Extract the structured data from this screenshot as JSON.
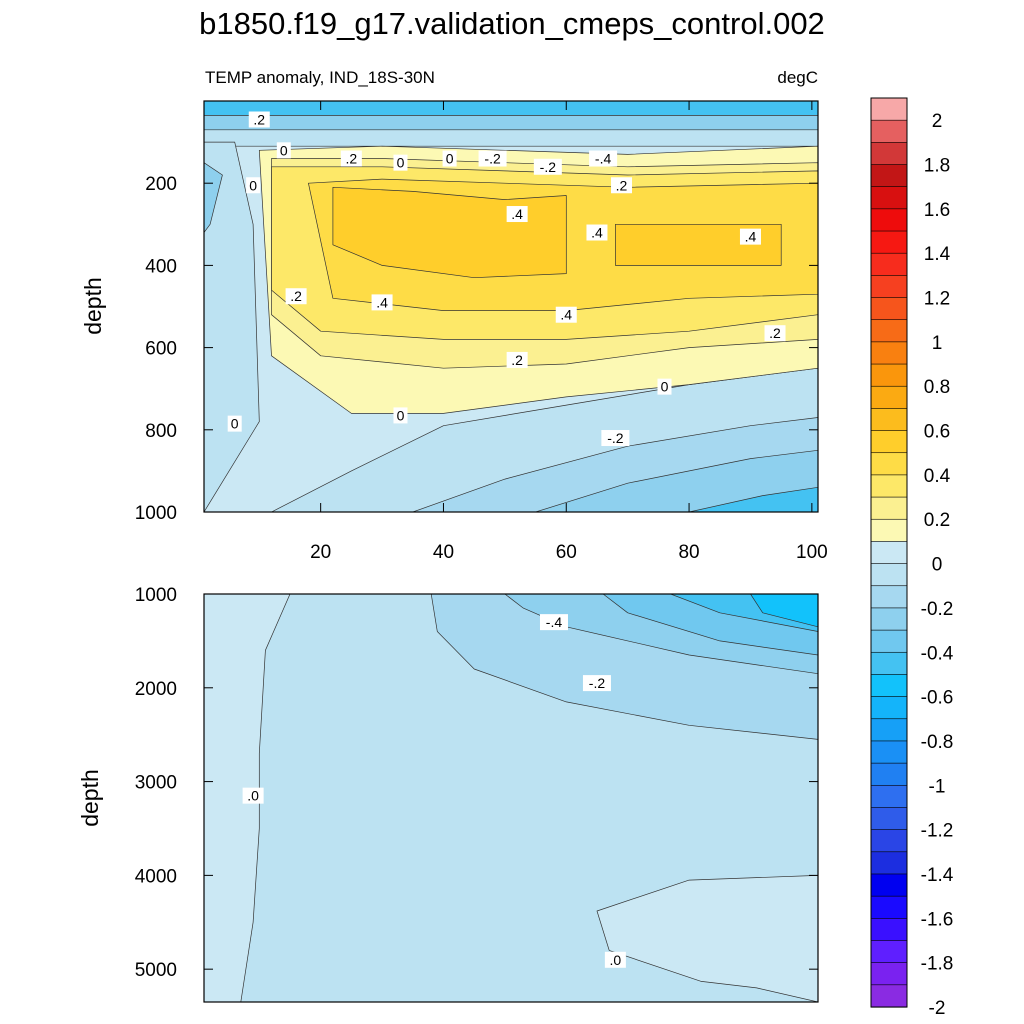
{
  "chart_data": {
    "type": "contour",
    "title": "b1850.f19_g17.validation_cmeps_control.002",
    "subtitle_left": "TEMP anomaly, IND_18S-30N",
    "subtitle_right": "degC",
    "colorbar": {
      "levels": [
        -2.0,
        -1.9,
        -1.8,
        -1.7,
        -1.6,
        -1.5,
        -1.4,
        -1.3,
        -1.2,
        -1.1,
        -1.0,
        -0.9,
        -0.8,
        -0.7,
        -0.6,
        -0.5,
        -0.4,
        -0.3,
        -0.2,
        -0.1,
        0.0,
        0.1,
        0.2,
        0.3,
        0.4,
        0.5,
        0.6,
        0.7,
        0.8,
        0.9,
        1.0,
        1.1,
        1.2,
        1.3,
        1.4,
        1.5,
        1.6,
        1.7,
        1.8,
        1.9,
        2.0
      ],
      "colors": [
        "#8a2be2",
        "#7a22f0",
        "#5f1fff",
        "#3a10ff",
        "#1a0aff",
        "#0000f0",
        "#1c2ee0",
        "#2a45e6",
        "#2f5cea",
        "#2e6ff0",
        "#2080f2",
        "#1a90f5",
        "#16a0f7",
        "#14b4fa",
        "#12c2fb",
        "#44c2f2",
        "#70c8ef",
        "#8ed0ee",
        "#a6d8f0",
        "#bce2f2",
        "#cbe8f4",
        "#fcf9b4",
        "#fbf091",
        "#fde868",
        "#fedc46",
        "#ffce2b",
        "#fcbc1d",
        "#fbaa12",
        "#fa960c",
        "#f98010",
        "#f76b17",
        "#f6551c",
        "#f64020",
        "#f72c1d",
        "#f61812",
        "#ee0c0c",
        "#d81010",
        "#c21616",
        "#d23838",
        "#e56060",
        "#f7a8a8"
      ],
      "tick_labels": [
        "2",
        "1.8",
        "1.6",
        "1.4",
        "1.2",
        "1",
        "0.8",
        "0.6",
        "0.4",
        "0.2",
        "0",
        "-0.2",
        "-0.4",
        "-0.6",
        "-0.8",
        "-1",
        "-1.2",
        "-1.4",
        "-1.6",
        "-1.8",
        "-2"
      ]
    },
    "panels": [
      {
        "name": "upper",
        "ylabel": "depth",
        "xlim": [
          1,
          101
        ],
        "ylim": [
          0,
          1000
        ],
        "y_inverted": true,
        "x_ticks": [
          20,
          40,
          60,
          80,
          100
        ],
        "x_tick_labels": [
          "20",
          "40",
          "60",
          "80",
          "100"
        ],
        "y_ticks": [
          200,
          400,
          600,
          800,
          1000
        ],
        "y_tick_labels": [
          "200",
          "400",
          "600",
          "800",
          "1000"
        ],
        "regions": [
          {
            "value": -0.1,
            "points": [
              [
                1,
                0
              ],
              [
                101,
                0
              ],
              [
                101,
                110
              ],
              [
                1,
                110
              ]
            ]
          },
          {
            "value": -0.3,
            "points": [
              [
                1,
                0
              ],
              [
                101,
                0
              ],
              [
                101,
                70
              ],
              [
                1,
                70
              ]
            ]
          },
          {
            "value": -0.5,
            "points": [
              [
                1,
                0
              ],
              [
                101,
                0
              ],
              [
                101,
                35
              ],
              [
                1,
                35
              ]
            ]
          },
          {
            "value": -0.1,
            "points": [
              [
                1,
                100
              ],
              [
                6,
                100
              ],
              [
                9,
                300
              ],
              [
                10,
                780
              ],
              [
                1,
                1000
              ]
            ]
          },
          {
            "value": -0.3,
            "points": [
              [
                1,
                150
              ],
              [
                4,
                180
              ],
              [
                2,
                300
              ],
              [
                1,
                320
              ]
            ]
          },
          {
            "value": -0.1,
            "points": [
              [
                12,
                1000
              ],
              [
                25,
                900
              ],
              [
                40,
                790
              ],
              [
                60,
                740
              ],
              [
                80,
                690
              ],
              [
                101,
                650
              ],
              [
                101,
                1000
              ]
            ]
          },
          {
            "value": -0.2,
            "points": [
              [
                35,
                1000
              ],
              [
                50,
                920
              ],
              [
                70,
                840
              ],
              [
                90,
                790
              ],
              [
                101,
                770
              ],
              [
                101,
                1000
              ]
            ]
          },
          {
            "value": -0.3,
            "points": [
              [
                55,
                1000
              ],
              [
                70,
                930
              ],
              [
                90,
                870
              ],
              [
                101,
                850
              ],
              [
                101,
                1000
              ]
            ]
          },
          {
            "value": -0.5,
            "points": [
              [
                80,
                1000
              ],
              [
                92,
                960
              ],
              [
                101,
                940
              ],
              [
                101,
                1000
              ]
            ]
          },
          {
            "value": 0.1,
            "points": [
              [
                10,
                120
              ],
              [
                30,
                110
              ],
              [
                50,
                120
              ],
              [
                70,
                130
              ],
              [
                101,
                110
              ],
              [
                101,
                650
              ],
              [
                80,
                690
              ],
              [
                60,
                720
              ],
              [
                40,
                760
              ],
              [
                25,
                760
              ],
              [
                12,
                620
              ]
            ]
          },
          {
            "value": 0.2,
            "points": [
              [
                12,
                140
              ],
              [
                30,
                140
              ],
              [
                50,
                150
              ],
              [
                70,
                160
              ],
              [
                101,
                150
              ],
              [
                101,
                580
              ],
              [
                80,
                600
              ],
              [
                60,
                640
              ],
              [
                40,
                650
              ],
              [
                20,
                620
              ],
              [
                12,
                520
              ]
            ]
          },
          {
            "value": 0.3,
            "points": [
              [
                12,
                160
              ],
              [
                30,
                160
              ],
              [
                50,
                170
              ],
              [
                70,
                180
              ],
              [
                101,
                170
              ],
              [
                101,
                520
              ],
              [
                80,
                560
              ],
              [
                60,
                580
              ],
              [
                40,
                580
              ],
              [
                20,
                560
              ],
              [
                12,
                460
              ]
            ]
          },
          {
            "value": 0.4,
            "points": [
              [
                18,
                200
              ],
              [
                30,
                190
              ],
              [
                50,
                200
              ],
              [
                70,
                210
              ],
              [
                101,
                200
              ],
              [
                101,
                470
              ],
              [
                80,
                480
              ],
              [
                60,
                510
              ],
              [
                40,
                510
              ],
              [
                22,
                480
              ]
            ]
          },
          {
            "value": 0.5,
            "points": [
              [
                22,
                210
              ],
              [
                35,
                220
              ],
              [
                50,
                240
              ],
              [
                60,
                230
              ],
              [
                60,
                420
              ],
              [
                45,
                430
              ],
              [
                30,
                400
              ],
              [
                22,
                350
              ]
            ]
          },
          {
            "value": 0.5,
            "points": [
              [
                68,
                300
              ],
              [
                95,
                300
              ],
              [
                95,
                400
              ],
              [
                68,
                400
              ]
            ]
          }
        ],
        "contour_labels": [
          {
            "text": ".2",
            "x": 10,
            "y": 45
          },
          {
            "text": "0",
            "x": 14,
            "y": 120
          },
          {
            "text": ".2",
            "x": 25,
            "y": 140
          },
          {
            "text": "0",
            "x": 33,
            "y": 150
          },
          {
            "text": "0",
            "x": 41,
            "y": 140
          },
          {
            "text": "-.2",
            "x": 48,
            "y": 140
          },
          {
            "text": "-.2",
            "x": 57,
            "y": 160
          },
          {
            "text": "-.4",
            "x": 66,
            "y": 140
          },
          {
            "text": "0",
            "x": 9,
            "y": 205
          },
          {
            "text": ".2",
            "x": 69,
            "y": 205
          },
          {
            "text": ".4",
            "x": 52,
            "y": 275
          },
          {
            "text": ".4",
            "x": 65,
            "y": 320
          },
          {
            "text": ".4",
            "x": 90,
            "y": 330
          },
          {
            "text": ".2",
            "x": 16,
            "y": 475
          },
          {
            "text": ".4",
            "x": 30,
            "y": 490
          },
          {
            "text": ".4",
            "x": 60,
            "y": 520
          },
          {
            "text": ".2",
            "x": 94,
            "y": 565
          },
          {
            "text": ".2",
            "x": 52,
            "y": 630
          },
          {
            "text": "0",
            "x": 76,
            "y": 695
          },
          {
            "text": "0",
            "x": 33,
            "y": 765
          },
          {
            "text": "0",
            "x": 6,
            "y": 785
          },
          {
            "text": "-.2",
            "x": 68,
            "y": 820
          }
        ]
      },
      {
        "name": "lower",
        "ylabel": "depth",
        "xlim": [
          1,
          101
        ],
        "ylim": [
          1000,
          5350
        ],
        "y_inverted": true,
        "y_ticks": [
          1000,
          2000,
          3000,
          4000,
          5000
        ],
        "y_tick_labels": [
          "1000",
          "2000",
          "3000",
          "4000",
          "5000"
        ],
        "background_value": 0.05,
        "regions": [
          {
            "value": -0.1,
            "points": [
              [
                15,
                1000
              ],
              [
                101,
                1000
              ],
              [
                101,
                4000
              ],
              [
                80,
                4050
              ],
              [
                65,
                4380
              ],
              [
                67,
                4800
              ],
              [
                82,
                5130
              ],
              [
                91,
                5200
              ],
              [
                101,
                5350
              ],
              [
                7,
                5350
              ],
              [
                9,
                4500
              ],
              [
                10,
                3500
              ],
              [
                10,
                2700
              ],
              [
                11,
                1600
              ]
            ]
          },
          {
            "value": -0.2,
            "points": [
              [
                38,
                1000
              ],
              [
                101,
                1000
              ],
              [
                101,
                2550
              ],
              [
                80,
                2400
              ],
              [
                60,
                2150
              ],
              [
                45,
                1800
              ],
              [
                39,
                1400
              ]
            ]
          },
          {
            "value": -0.3,
            "points": [
              [
                50,
                1000
              ],
              [
                101,
                1000
              ],
              [
                101,
                1850
              ],
              [
                80,
                1650
              ],
              [
                60,
                1350
              ],
              [
                53,
                1150
              ]
            ]
          },
          {
            "value": -0.4,
            "points": [
              [
                66,
                1000
              ],
              [
                101,
                1000
              ],
              [
                101,
                1650
              ],
              [
                85,
                1500
              ],
              [
                70,
                1200
              ]
            ]
          },
          {
            "value": -0.5,
            "points": [
              [
                77,
                1000
              ],
              [
                101,
                1000
              ],
              [
                101,
                1400
              ],
              [
                85,
                1200
              ]
            ]
          },
          {
            "value": -0.6,
            "points": [
              [
                90,
                1000
              ],
              [
                101,
                1000
              ],
              [
                101,
                1350
              ],
              [
                92,
                1200
              ]
            ]
          }
        ],
        "contour_labels": [
          {
            "text": "-.4",
            "x": 58,
            "y": 1300
          },
          {
            "text": "-.2",
            "x": 65,
            "y": 1950
          },
          {
            "text": ".0",
            "x": 9,
            "y": 3150
          },
          {
            "text": ".0",
            "x": 68,
            "y": 4900
          }
        ]
      }
    ]
  }
}
